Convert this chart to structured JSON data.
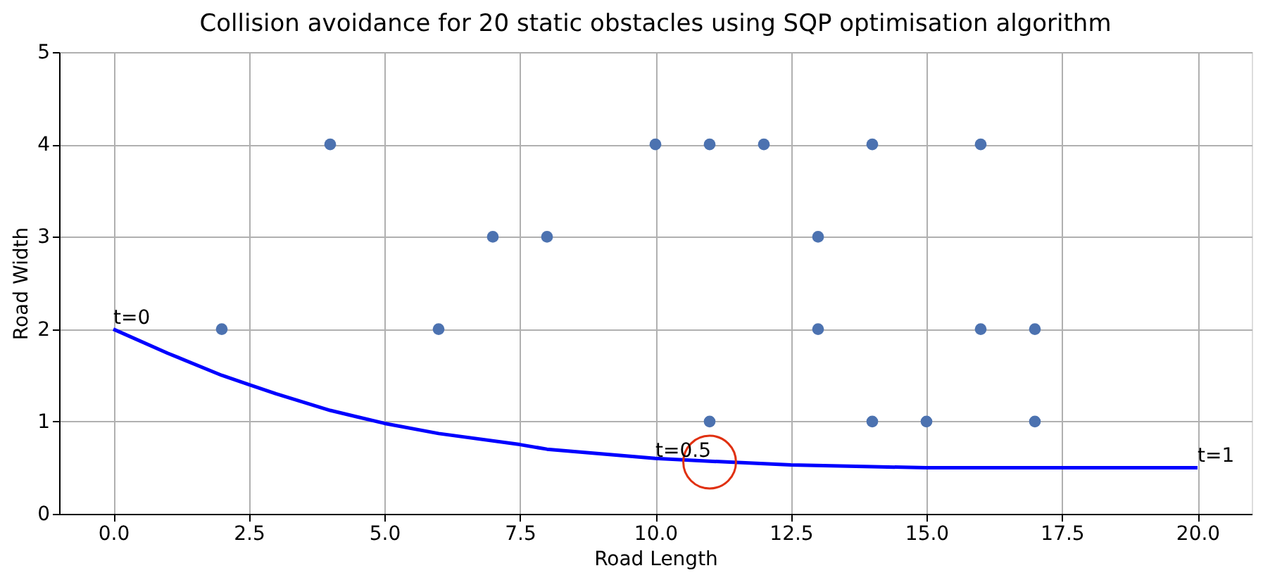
{
  "chart_data": {
    "type": "scatter",
    "title": "Collision avoidance for 20 static obstacles using SQP optimisation algorithm",
    "xlabel": "Road Length",
    "ylabel": "Road Width",
    "xlim": [
      -1,
      21
    ],
    "ylim": [
      0,
      5
    ],
    "xticks": [
      {
        "value": 0,
        "label": "0.0"
      },
      {
        "value": 2.5,
        "label": "2.5"
      },
      {
        "value": 5,
        "label": "5.0"
      },
      {
        "value": 7.5,
        "label": "7.5"
      },
      {
        "value": 10,
        "label": "10.0"
      },
      {
        "value": 12.5,
        "label": "12.5"
      },
      {
        "value": 15,
        "label": "15.0"
      },
      {
        "value": 17.5,
        "label": "17.5"
      },
      {
        "value": 20,
        "label": "20.0"
      }
    ],
    "yticks": [
      0,
      1,
      2,
      3,
      4,
      5
    ],
    "grid": true,
    "marker": "circle",
    "series": [
      {
        "color": "#4c72b0",
        "x": [
          2,
          4,
          6,
          7,
          8,
          10,
          11,
          11,
          12,
          13,
          13,
          14,
          14,
          15,
          16,
          16,
          17,
          17
        ],
        "values": [
          2,
          4,
          2,
          3,
          3,
          4,
          4,
          1,
          4,
          3,
          2,
          4,
          1,
          1,
          4,
          2,
          2,
          1
        ]
      },
      {
        "type": "line",
        "color": "#0000ff",
        "marker": "none",
        "line_style": "solid",
        "x": [
          0,
          1,
          2,
          2.5,
          3,
          4,
          5,
          6,
          7.5,
          8,
          9,
          10,
          11,
          12.5,
          14,
          15,
          17.5,
          20
        ],
        "values": [
          2,
          1.74,
          1.5,
          1.4,
          1.3,
          1.12,
          0.98,
          0.87,
          0.75,
          0.7,
          0.65,
          0.6,
          0.57,
          0.53,
          0.51,
          0.5,
          0.5,
          0.5
        ]
      },
      {
        "type": "bubble",
        "color": "#e03010",
        "marker": "circle",
        "x": [
          11
        ],
        "values": [
          0.56
        ],
        "sizes": [
          1
        ]
      }
    ],
    "annotations": [
      {
        "text": "t=0",
        "x": 0,
        "y": 2
      },
      {
        "text": "t=0.5",
        "x": 10,
        "y": 0.56
      },
      {
        "text": "t=1",
        "x": 20,
        "y": 0.5
      }
    ]
  }
}
